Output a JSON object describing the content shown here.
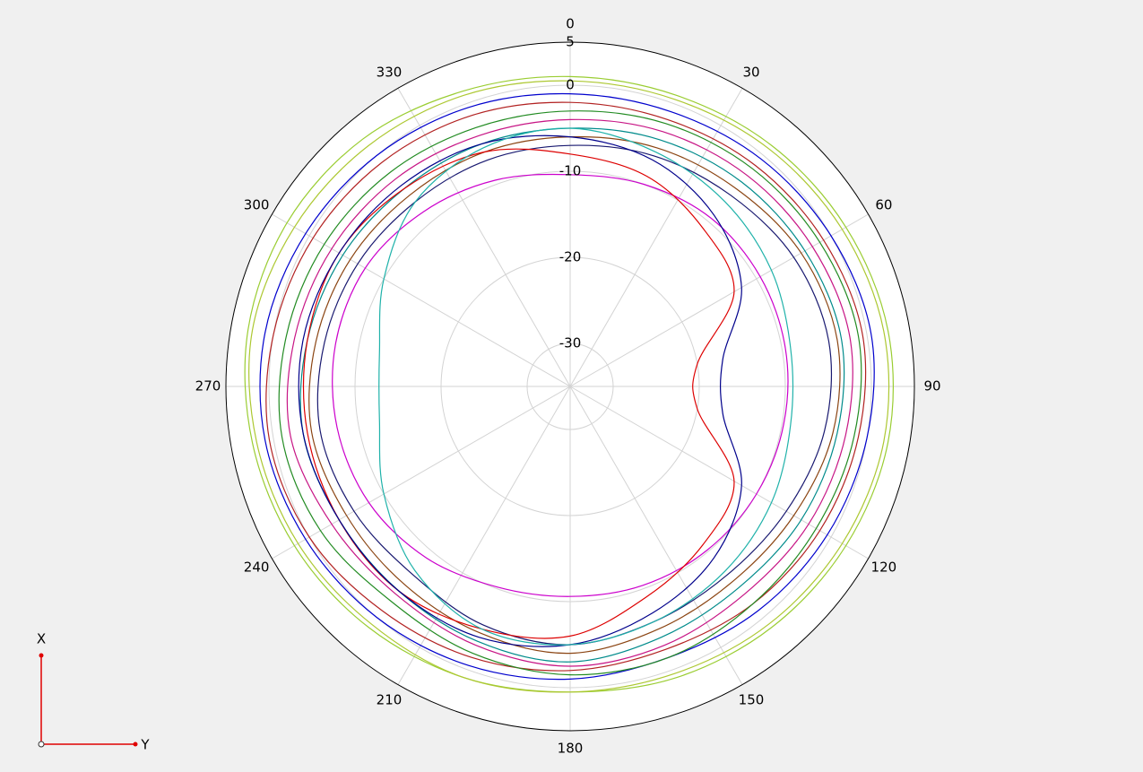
{
  "chart_data": {
    "type": "polar-line",
    "theta": [
      0,
      20,
      40,
      60,
      80,
      100,
      120,
      140,
      160,
      180,
      200,
      220,
      240,
      260,
      280,
      300,
      320,
      340
    ],
    "rlim": [
      -35,
      5
    ],
    "rticks": [
      -30,
      -20,
      -10,
      0,
      5
    ],
    "thetaticks": [
      0,
      30,
      60,
      90,
      120,
      150,
      180,
      210,
      240,
      270,
      300,
      330
    ],
    "direction": "clockwise",
    "grid": true,
    "series": [
      {
        "color": "#9acd32",
        "values": [
          1,
          1,
          1.5,
          2,
          2.5,
          2.5,
          2,
          1.5,
          1,
          0.5,
          1,
          1.5,
          2,
          2.5,
          3,
          3,
          2.5,
          1.5
        ]
      },
      {
        "color": "#0000cd",
        "values": [
          -1,
          -1,
          -0.5,
          0,
          0.5,
          0,
          -0.5,
          -1,
          -1.5,
          -1,
          -0.5,
          0,
          0.5,
          1,
          1,
          0.5,
          0,
          -0.5
        ]
      },
      {
        "color": "#b22222",
        "values": [
          -2,
          -2,
          -1.5,
          -1,
          -0.5,
          -1,
          -1.5,
          -2,
          -2.5,
          -2,
          -1.5,
          -1,
          0,
          0.5,
          0,
          -0.5,
          -1,
          -1.5
        ]
      },
      {
        "color": "#228b22",
        "values": [
          -3,
          -2.5,
          -2,
          -1.5,
          -1,
          -1.5,
          -2,
          -2,
          -1.5,
          -1.5,
          -2,
          -2.5,
          -1.5,
          -1,
          -1.5,
          -2,
          -2.5,
          -3
        ]
      },
      {
        "color": "#c71585",
        "values": [
          -4,
          -3.5,
          -3,
          -2.5,
          -2,
          -2.5,
          -3,
          -3.5,
          -3,
          -2.5,
          -3,
          -3.5,
          -3,
          -2,
          -2.5,
          -3,
          -3.5,
          -4
        ]
      },
      {
        "color": "#008b8b",
        "values": [
          -5,
          -4.5,
          -4,
          -3.5,
          -3,
          -3.5,
          -4,
          -4.5,
          -4,
          -3,
          -3.5,
          -4,
          -4,
          -3.5,
          -4,
          -4.5,
          -5,
          -5
        ]
      },
      {
        "color": "#8b4513",
        "values": [
          -6,
          -5.5,
          -5,
          -4,
          -3.5,
          -4,
          -5,
          -5.5,
          -5,
          -4,
          -4.5,
          -5,
          -5,
          -4.5,
          -5,
          -5.5,
          -6,
          -6
        ]
      },
      {
        "color": "#191970",
        "values": [
          -7,
          -6.5,
          -6,
          -5,
          -4.5,
          -5,
          -6,
          -6.5,
          -6,
          -5,
          -5.5,
          -6.5,
          -6,
          -5.5,
          -6,
          -6.5,
          -7,
          -7
        ]
      },
      {
        "color": "#cc00cc",
        "values": [
          -10.4,
          -10,
          -9.5,
          -9.5,
          -9.6,
          -9.8,
          -10,
          -10.2,
          -10.4,
          -10.6,
          -10.2,
          -9,
          -8,
          -7.5,
          -7.3,
          -7.5,
          -8.5,
          -9.5
        ]
      },
      {
        "color": "#dd0000",
        "values": [
          -8,
          -9,
          -11,
          -13,
          -20,
          -20,
          -13,
          -11,
          -9,
          -6,
          -5,
          -4,
          -4,
          -4,
          -4,
          -4,
          -5,
          -6
        ]
      },
      {
        "color": "#00008b",
        "values": [
          -6,
          -7,
          -9,
          -12,
          -17,
          -17,
          -12,
          -9,
          -7,
          -5,
          -4,
          -4,
          -4,
          -3.5,
          -3.5,
          -4,
          -4.5,
          -5
        ]
      },
      {
        "color": "#20b2aa",
        "values": [
          -5,
          -6,
          -7,
          -8,
          -9,
          -9,
          -8,
          -7,
          -6,
          -5,
          -5,
          -7,
          -10,
          -12.5,
          -12.5,
          -10,
          -7,
          -5.5
        ]
      },
      {
        "color": "#adc832",
        "values": [
          0.5,
          0.5,
          1,
          1.5,
          2,
          2,
          1.5,
          1,
          0.5,
          0.5,
          1,
          1,
          1.5,
          2,
          2.5,
          2,
          1.5,
          1
        ]
      }
    ]
  },
  "axis_icon": {
    "x_label": "X",
    "y_label": "Y"
  }
}
